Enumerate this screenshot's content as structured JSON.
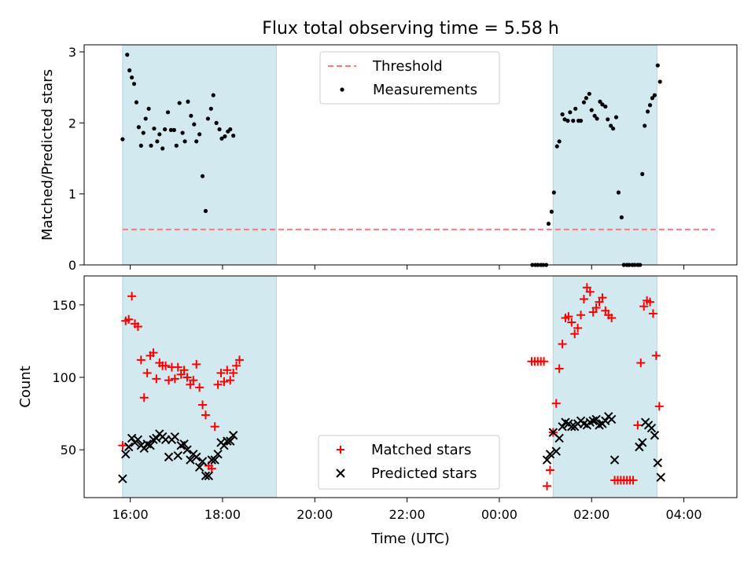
{
  "title": "Flux total observing time = 5.58 h",
  "xlabel": "Time (UTC)",
  "colors": {
    "threshold": "#ff7777",
    "measurements": "#000000",
    "matched": "#ff0000",
    "predicted": "#000000",
    "observing_band": "#d3e9f0"
  },
  "chart_data": [
    {
      "type": "scatter",
      "ylabel": "Matched/Predicted stars",
      "ylim": [
        0,
        3.1
      ],
      "yticks": [
        "0",
        "1",
        "2",
        "3"
      ],
      "observing_windows": [
        [
          "15:50",
          "19:10"
        ],
        [
          "01:10",
          "03:25"
        ]
      ],
      "legend": {
        "placement": "top-center",
        "entries": [
          "Threshold",
          "Measurements"
        ]
      },
      "series": [
        {
          "name": "Threshold",
          "kind": "dashed-line",
          "points": [
            [
              "15:50",
              0.5
            ],
            [
              "04:40",
              0.5
            ]
          ]
        },
        {
          "name": "Measurements",
          "kind": "dots",
          "points": [
            [
              "15:50",
              1.77
            ],
            [
              "15:56",
              2.96
            ],
            [
              "15:59",
              2.74
            ],
            [
              "16:02",
              2.64
            ],
            [
              "16:05",
              2.55
            ],
            [
              "16:08",
              2.29
            ],
            [
              "16:11",
              1.94
            ],
            [
              "16:14",
              1.68
            ],
            [
              "16:17",
              1.86
            ],
            [
              "16:20",
              2.06
            ],
            [
              "16:24",
              2.2
            ],
            [
              "16:27",
              1.68
            ],
            [
              "16:31",
              1.92
            ],
            [
              "16:35",
              1.74
            ],
            [
              "16:38",
              1.84
            ],
            [
              "16:42",
              1.64
            ],
            [
              "16:45",
              1.91
            ],
            [
              "16:49",
              2.15
            ],
            [
              "16:53",
              1.9
            ],
            [
              "16:57",
              1.9
            ],
            [
              "17:00",
              1.68
            ],
            [
              "17:04",
              2.28
            ],
            [
              "17:08",
              1.86
            ],
            [
              "17:11",
              1.74
            ],
            [
              "17:15",
              2.3
            ],
            [
              "17:19",
              2.1
            ],
            [
              "17:23",
              1.98
            ],
            [
              "17:26",
              1.74
            ],
            [
              "17:30",
              1.84
            ],
            [
              "17:34",
              1.25
            ],
            [
              "17:38",
              0.76
            ],
            [
              "17:41",
              2.06
            ],
            [
              "17:45",
              2.2
            ],
            [
              "17:48",
              2.39
            ],
            [
              "17:52",
              2.0
            ],
            [
              "17:56",
              1.91
            ],
            [
              "17:59",
              1.78
            ],
            [
              "18:03",
              1.81
            ],
            [
              "18:07",
              1.88
            ],
            [
              "18:10",
              1.91
            ],
            [
              "18:14",
              1.82
            ],
            [
              "00:43",
              0.0
            ],
            [
              "00:47",
              0.0
            ],
            [
              "00:50",
              0.0
            ],
            [
              "00:54",
              0.0
            ],
            [
              "00:57",
              0.0
            ],
            [
              "01:01",
              0.0
            ],
            [
              "01:04",
              0.58
            ],
            [
              "01:08",
              0.75
            ],
            [
              "01:11",
              1.02
            ],
            [
              "01:15",
              1.67
            ],
            [
              "01:18",
              1.74
            ],
            [
              "01:22",
              2.12
            ],
            [
              "01:25",
              2.05
            ],
            [
              "01:29",
              2.03
            ],
            [
              "01:32",
              2.15
            ],
            [
              "01:36",
              2.03
            ],
            [
              "01:39",
              2.2
            ],
            [
              "01:43",
              2.03
            ],
            [
              "01:46",
              2.03
            ],
            [
              "01:50",
              2.29
            ],
            [
              "01:53",
              2.35
            ],
            [
              "01:57",
              2.41
            ],
            [
              "02:00",
              2.18
            ],
            [
              "02:04",
              2.1
            ],
            [
              "02:07",
              2.06
            ],
            [
              "02:11",
              2.3
            ],
            [
              "02:14",
              2.26
            ],
            [
              "02:18",
              2.23
            ],
            [
              "02:21",
              2.05
            ],
            [
              "02:25",
              1.96
            ],
            [
              "02:28",
              1.92
            ],
            [
              "02:32",
              2.08
            ],
            [
              "02:35",
              1.02
            ],
            [
              "02:39",
              0.67
            ],
            [
              "02:42",
              0.0
            ],
            [
              "02:46",
              0.0
            ],
            [
              "02:49",
              0.0
            ],
            [
              "02:53",
              0.0
            ],
            [
              "02:56",
              0.0
            ],
            [
              "03:00",
              0.0
            ],
            [
              "03:03",
              0.0
            ],
            [
              "03:06",
              1.28
            ],
            [
              "03:09",
              1.96
            ],
            [
              "03:13",
              2.16
            ],
            [
              "03:16",
              2.25
            ],
            [
              "03:19",
              2.35
            ],
            [
              "03:22",
              2.39
            ],
            [
              "03:26",
              2.81
            ],
            [
              "03:29",
              2.58
            ]
          ]
        }
      ]
    },
    {
      "type": "scatter",
      "ylabel": "Count",
      "ylim": [
        17,
        170
      ],
      "yticks": [
        "50",
        "100",
        "150"
      ],
      "observing_windows": [
        [
          "15:50",
          "19:10"
        ],
        [
          "01:10",
          "03:25"
        ]
      ],
      "legend": {
        "placement": "bottom-center",
        "entries": [
          "Matched stars",
          "Predicted stars"
        ]
      },
      "series": [
        {
          "name": "Matched stars",
          "kind": "plus",
          "points": [
            [
              "15:50",
              53
            ],
            [
              "15:54",
              139
            ],
            [
              "15:58",
              140
            ],
            [
              "16:02",
              156
            ],
            [
              "16:06",
              137
            ],
            [
              "16:10",
              135
            ],
            [
              "16:14",
              112
            ],
            [
              "16:18",
              86
            ],
            [
              "16:22",
              103
            ],
            [
              "16:26",
              115
            ],
            [
              "16:30",
              117
            ],
            [
              "16:34",
              99
            ],
            [
              "16:38",
              110
            ],
            [
              "16:42",
              108
            ],
            [
              "16:46",
              108
            ],
            [
              "16:50",
              98
            ],
            [
              "16:54",
              107
            ],
            [
              "16:58",
              99
            ],
            [
              "17:02",
              107
            ],
            [
              "17:06",
              102
            ],
            [
              "17:10",
              105
            ],
            [
              "17:14",
              100
            ],
            [
              "17:18",
              95
            ],
            [
              "17:22",
              98
            ],
            [
              "17:26",
              109
            ],
            [
              "17:30",
              93
            ],
            [
              "17:34",
              81
            ],
            [
              "17:38",
              74
            ],
            [
              "17:42",
              39
            ],
            [
              "17:46",
              37
            ],
            [
              "17:50",
              66
            ],
            [
              "17:54",
              95
            ],
            [
              "17:58",
              103
            ],
            [
              "18:02",
              97
            ],
            [
              "18:06",
              105
            ],
            [
              "18:10",
              98
            ],
            [
              "18:14",
              103
            ],
            [
              "18:18",
              108
            ],
            [
              "18:22",
              112
            ],
            [
              "00:42",
              111
            ],
            [
              "00:46",
              111
            ],
            [
              "00:50",
              111
            ],
            [
              "00:54",
              111
            ],
            [
              "00:58",
              111
            ],
            [
              "01:02",
              25
            ],
            [
              "01:06",
              36
            ],
            [
              "01:10",
              62
            ],
            [
              "01:14",
              82
            ],
            [
              "01:18",
              106
            ],
            [
              "01:22",
              123
            ],
            [
              "01:26",
              141
            ],
            [
              "01:30",
              142
            ],
            [
              "01:34",
              138
            ],
            [
              "01:38",
              130
            ],
            [
              "01:42",
              134
            ],
            [
              "01:46",
              143
            ],
            [
              "01:50",
              154
            ],
            [
              "01:54",
              162
            ],
            [
              "01:58",
              159
            ],
            [
              "02:02",
              145
            ],
            [
              "02:06",
              148
            ],
            [
              "02:10",
              152
            ],
            [
              "02:14",
              155
            ],
            [
              "02:18",
              146
            ],
            [
              "02:22",
              143
            ],
            [
              "02:26",
              141
            ],
            [
              "02:30",
              29
            ],
            [
              "02:34",
              29
            ],
            [
              "02:38",
              29
            ],
            [
              "02:42",
              29
            ],
            [
              "02:46",
              29
            ],
            [
              "02:50",
              29
            ],
            [
              "02:54",
              29
            ],
            [
              "03:00",
              67
            ],
            [
              "03:04",
              110
            ],
            [
              "03:08",
              149
            ],
            [
              "03:12",
              153
            ],
            [
              "03:16",
              152
            ],
            [
              "03:20",
              144
            ],
            [
              "03:24",
              115
            ],
            [
              "03:28",
              80
            ]
          ]
        },
        {
          "name": "Predicted stars",
          "kind": "x",
          "points": [
            [
              "15:50",
              30
            ],
            [
              "15:54",
              47
            ],
            [
              "15:58",
              52
            ],
            [
              "16:02",
              58
            ],
            [
              "16:06",
              55
            ],
            [
              "16:10",
              57
            ],
            [
              "16:14",
              53
            ],
            [
              "16:18",
              51
            ],
            [
              "16:22",
              54
            ],
            [
              "16:26",
              53
            ],
            [
              "16:30",
              57
            ],
            [
              "16:34",
              58
            ],
            [
              "16:38",
              61
            ],
            [
              "16:42",
              59
            ],
            [
              "16:46",
              57
            ],
            [
              "16:50",
              45
            ],
            [
              "16:54",
              57
            ],
            [
              "16:58",
              59
            ],
            [
              "17:02",
              46
            ],
            [
              "17:06",
              53
            ],
            [
              "17:10",
              54
            ],
            [
              "17:14",
              50
            ],
            [
              "17:18",
              43
            ],
            [
              "17:22",
              47
            ],
            [
              "17:26",
              45
            ],
            [
              "17:30",
              38
            ],
            [
              "17:34",
              42
            ],
            [
              "17:38",
              32
            ],
            [
              "17:42",
              32
            ],
            [
              "17:46",
              43
            ],
            [
              "17:50",
              43
            ],
            [
              "17:54",
              47
            ],
            [
              "17:58",
              55
            ],
            [
              "18:02",
              53
            ],
            [
              "18:06",
              56
            ],
            [
              "18:10",
              56
            ],
            [
              "18:14",
              60
            ],
            [
              "01:02",
              43
            ],
            [
              "01:06",
              47
            ],
            [
              "01:10",
              62
            ],
            [
              "01:14",
              49
            ],
            [
              "01:18",
              58
            ],
            [
              "01:22",
              66
            ],
            [
              "01:26",
              69
            ],
            [
              "01:30",
              68
            ],
            [
              "01:34",
              66
            ],
            [
              "01:38",
              66
            ],
            [
              "01:42",
              68
            ],
            [
              "01:46",
              70
            ],
            [
              "01:50",
              68
            ],
            [
              "01:54",
              67
            ],
            [
              "01:58",
              69
            ],
            [
              "02:02",
              70
            ],
            [
              "02:06",
              71
            ],
            [
              "02:10",
              67
            ],
            [
              "02:14",
              68
            ],
            [
              "02:18",
              70
            ],
            [
              "02:22",
              73
            ],
            [
              "02:26",
              71
            ],
            [
              "02:30",
              43
            ],
            [
              "03:02",
              52
            ],
            [
              "03:06",
              55
            ],
            [
              "03:10",
              69
            ],
            [
              "03:14",
              67
            ],
            [
              "03:18",
              65
            ],
            [
              "03:22",
              60
            ],
            [
              "03:26",
              41
            ],
            [
              "03:30",
              31
            ]
          ]
        }
      ]
    }
  ],
  "xticks": [
    "16:00",
    "18:00",
    "20:00",
    "22:00",
    "00:00",
    "02:00",
    "04:00"
  ]
}
